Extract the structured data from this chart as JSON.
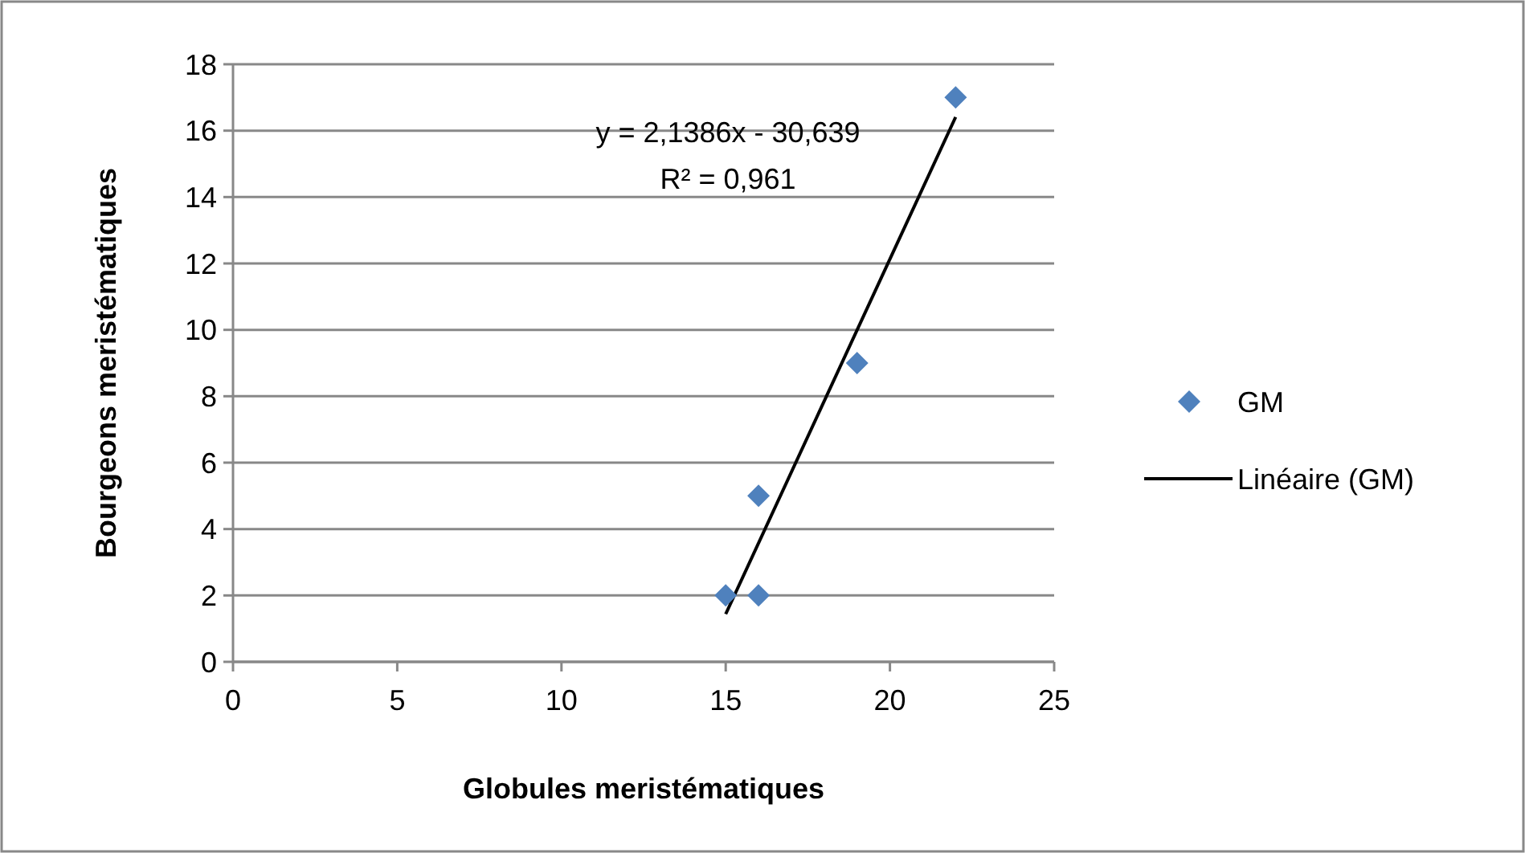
{
  "chart_data": {
    "type": "scatter",
    "xlabel": "Globules meristématiques",
    "ylabel": "Bourgeons meristématiques",
    "xlim": [
      0,
      25
    ],
    "xticks": [
      0,
      5,
      10,
      15,
      20,
      25
    ],
    "ylim": [
      0,
      18
    ],
    "yticks": [
      0,
      2,
      4,
      6,
      8,
      10,
      12,
      14,
      16,
      18
    ],
    "grid": "y",
    "legend": "right",
    "series": [
      {
        "name": "GM",
        "color": "#4f81bd",
        "marker": "diamond",
        "x": [
          15,
          16,
          16,
          19,
          22
        ],
        "values": [
          2,
          2,
          5,
          9,
          17
        ]
      },
      {
        "name": "Linéaire (GM)",
        "type": "line",
        "color": "#000000",
        "marker": "none",
        "line_style": "solid",
        "x": [
          15,
          22
        ],
        "values": [
          1.44,
          16.41
        ]
      }
    ],
    "annotations": [
      "y = 2,1386x - 30,639",
      "R² = 0,961"
    ]
  }
}
